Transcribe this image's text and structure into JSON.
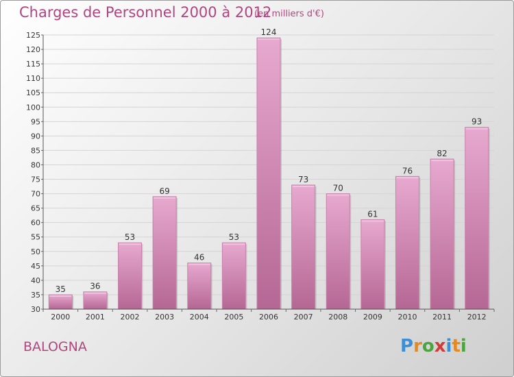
{
  "header": {
    "title": "Charges de Personnel 2000 à 2012",
    "subtitle": "(en milliers d'€)"
  },
  "footer": {
    "commune": "BALOGNA",
    "brand": [
      "P",
      "r",
      "o",
      "x",
      "i",
      "t",
      "i"
    ],
    "brand_colors": [
      "#3a8fd6",
      "#e58a1f",
      "#4aa63c",
      "#d23a3a",
      "#3a8fd6",
      "#e58a1f",
      "#4aa63c"
    ]
  },
  "chart_data": {
    "type": "bar",
    "categories": [
      "2000",
      "2001",
      "2002",
      "2003",
      "2004",
      "2005",
      "2006",
      "2007",
      "2008",
      "2009",
      "2010",
      "2011",
      "2012"
    ],
    "values": [
      35,
      36,
      53,
      69,
      46,
      53,
      124,
      73,
      70,
      61,
      76,
      82,
      93
    ],
    "ylim": [
      30,
      125
    ],
    "yticks": [
      30,
      35,
      40,
      45,
      50,
      55,
      60,
      65,
      70,
      75,
      80,
      85,
      90,
      95,
      100,
      105,
      110,
      115,
      120,
      125
    ],
    "grid": true,
    "bar_color": "#d988b8",
    "data_labels": true
  }
}
